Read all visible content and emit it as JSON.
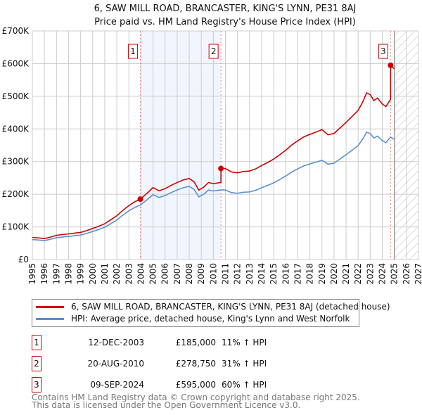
{
  "chart_data": {
    "type": "line",
    "title": "6, SAW MILL ROAD, BRANCASTER, KING'S LYNN, PE31 8AJ",
    "subtitle": "Price paid vs. HM Land Registry's House Price Index (HPI)",
    "xlim": [
      1995,
      2027
    ],
    "ylim": [
      0,
      700000
    ],
    "x_ticks": [
      "1995",
      "1996",
      "1997",
      "1998",
      "1999",
      "2000",
      "2001",
      "2002",
      "2003",
      "2004",
      "2005",
      "2006",
      "2007",
      "2008",
      "2009",
      "2010",
      "2011",
      "2012",
      "2013",
      "2014",
      "2015",
      "2016",
      "2017",
      "2018",
      "2019",
      "2020",
      "2021",
      "2022",
      "2023",
      "2024",
      "2025",
      "2026",
      "2027"
    ],
    "y_ticks": [
      {
        "v": 0,
        "label": "£0"
      },
      {
        "v": 100000,
        "label": "£100K"
      },
      {
        "v": 200000,
        "label": "£200K"
      },
      {
        "v": 300000,
        "label": "£300K"
      },
      {
        "v": 400000,
        "label": "£400K"
      },
      {
        "v": 500000,
        "label": "£500K"
      },
      {
        "v": 600000,
        "label": "£600K"
      },
      {
        "v": 700000,
        "label": "£700K"
      }
    ],
    "grid": true,
    "forecast_hatch_from": 2025,
    "series": [
      {
        "name": "6, SAW MILL ROAD, BRANCASTER, KING'S LYNN, PE31 8AJ (detached house)",
        "color": "#cc0000",
        "derived_from_hpi_and_sales": true
      },
      {
        "name": "HPI: Average price, detached house, King's Lynn and West Norfolk",
        "color": "#5b8fd0",
        "x": [
          1995,
          1995.5,
          1996,
          1996.5,
          1997,
          1997.5,
          1998,
          1998.5,
          1999,
          1999.5,
          2000,
          2000.5,
          2001,
          2001.5,
          2002,
          2002.5,
          2003,
          2003.5,
          2003.95,
          2004.5,
          2005,
          2005.5,
          2006,
          2006.5,
          2007,
          2007.5,
          2008,
          2008.4,
          2008.8,
          2009.2,
          2009.6,
          2010,
          2010.63,
          2011,
          2011.5,
          2012,
          2012.5,
          2013,
          2013.5,
          2014,
          2014.5,
          2015,
          2015.5,
          2016,
          2016.5,
          2017,
          2017.5,
          2018,
          2018.5,
          2019,
          2019.5,
          2020,
          2020.5,
          2021,
          2021.5,
          2022,
          2022.4,
          2022.7,
          2023,
          2023.3,
          2023.6,
          2024,
          2024.3,
          2024.69,
          2025
        ],
        "y": [
          61000,
          60000,
          58000,
          62000,
          67000,
          69000,
          71000,
          73000,
          75000,
          80000,
          86000,
          92000,
          99000,
          110000,
          121000,
          136000,
          149000,
          160000,
          167000,
          183000,
          199000,
          190000,
          196000,
          205000,
          213000,
          220000,
          224000,
          215000,
          192000,
          200000,
          213000,
          210000,
          213000,
          213000,
          205000,
          203000,
          206000,
          207000,
          212000,
          220000,
          227000,
          235000,
          245000,
          256000,
          268000,
          278000,
          287000,
          293000,
          298000,
          304000,
          292000,
          295000,
          308000,
          321000,
          335000,
          349000,
          370000,
          390000,
          386000,
          372000,
          378000,
          364000,
          358000,
          375000,
          368000
        ]
      }
    ],
    "sales": [
      {
        "id": "1",
        "x": 2003.95,
        "date": "12-DEC-2003",
        "price": 185000,
        "price_label": "£185,000",
        "hpi_change": "11% ↑ HPI"
      },
      {
        "id": "2",
        "x": 2010.63,
        "date": "20-AUG-2010",
        "price": 278750,
        "price_label": "£278,750",
        "hpi_change": "31% ↑ HPI"
      },
      {
        "id": "3",
        "x": 2024.69,
        "date": "09-SEP-2024",
        "price": 595000,
        "price_label": "£595,000",
        "hpi_change": "60% ↑ HPI"
      }
    ]
  },
  "footer": {
    "line1": "Contains HM Land Registry data © Crown copyright and database right 2025.",
    "line2": "This data is licensed under the Open Government Licence v3.0."
  }
}
